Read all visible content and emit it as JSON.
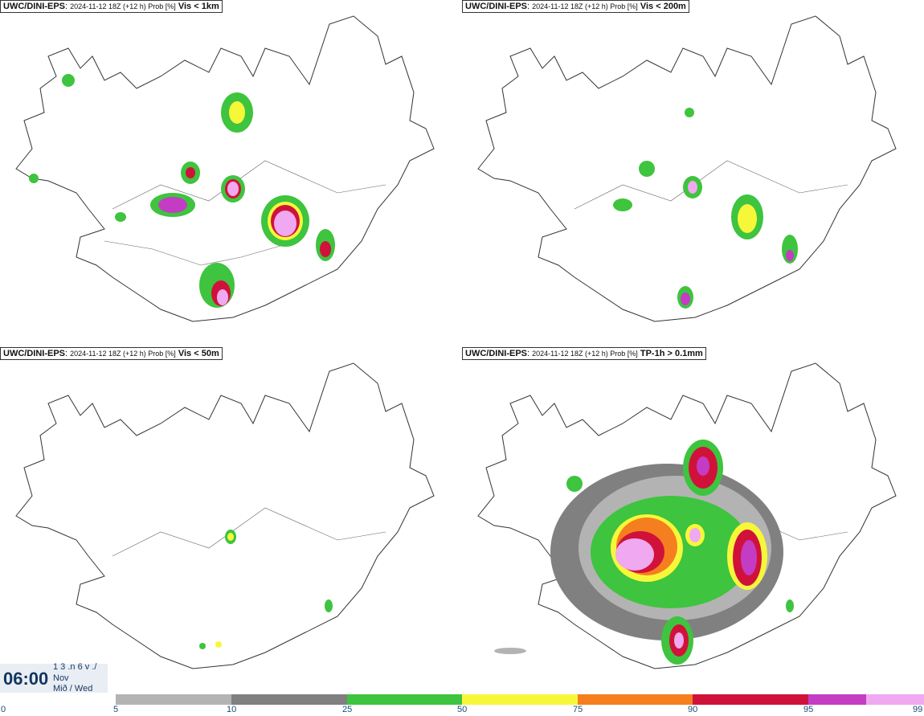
{
  "panels": [
    {
      "source": "UWC/DINI-EPS",
      "meta": "2024-11-12 18Z (+12 h) Prob [%]",
      "variable": "Vis < 1km"
    },
    {
      "source": "UWC/DINI-EPS",
      "meta": "2024-11-12 18Z (+12 h) Prob [%]",
      "variable": "Vis < 200m"
    },
    {
      "source": "UWC/DINI-EPS",
      "meta": "2024-11-12 18Z (+12 h) Prob [%]",
      "variable": "Vis < 50m"
    },
    {
      "source": "UWC/DINI-EPS",
      "meta": "2024-11-12 18Z (+12 h) Prob [%]",
      "variable": "TP-1h > 0.1mm"
    }
  ],
  "time": {
    "clock": "06:00",
    "line1": "1 3 .n 6 v ./",
    "line2": "Nov",
    "line3": "Mið / Wed"
  },
  "colorbar": {
    "ticks": [
      "0",
      "5",
      "10",
      "25",
      "50",
      "75",
      "90",
      "95",
      "99"
    ],
    "colors": [
      "#b3b3b3",
      "#808080",
      "#3ec43e",
      "#f7f73a",
      "#f57f1f",
      "#d0123a",
      "#c43cc4",
      "#f0a8f0"
    ]
  }
}
